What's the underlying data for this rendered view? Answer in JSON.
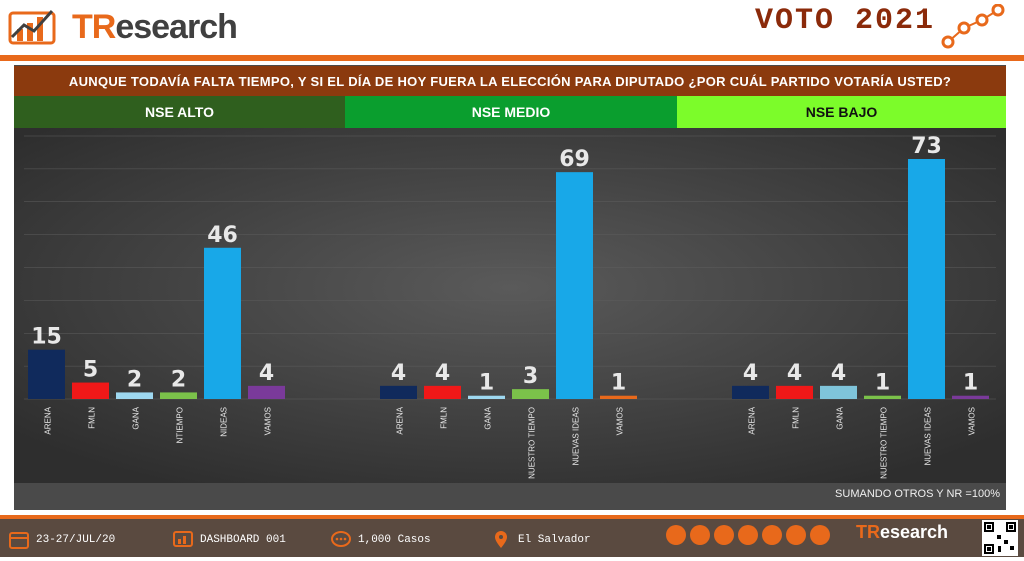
{
  "header": {
    "brand": "TResearch",
    "brand_prefix": "TR",
    "brand_rest": "esearch",
    "campaign": "VOTO 2021"
  },
  "question": "AUNQUE TODAVÍA FALTA TIEMPO, Y SI EL DÍA DE HOY FUERA LA ELECCIÓN PARA DIPUTADO ¿POR CUÁL PARTIDO VOTARÍA USTED?",
  "segments": [
    "NSE ALTO",
    "NSE MEDIO",
    "NSE BAJO"
  ],
  "note": "SUMANDO OTROS Y NR =100%",
  "footer": {
    "dates": "23-27/JUL/20",
    "dashboard": "DASHBOARD 001",
    "cases": "1,000 Casos",
    "location": "El Salvador",
    "brand": "TResearch"
  },
  "colors": {
    "orange": "#E8691B",
    "question_bg": "#8B3A0E",
    "alto": "#2F5F1E",
    "medio": "#0A9E2E",
    "bajo": "#7CFC2A"
  },
  "chart_data": [
    {
      "type": "bar",
      "title": "NSE ALTO",
      "categories": [
        "ARENA",
        "FMLN",
        "GANA",
        "NTIEMPO",
        "NIDEAS",
        "VAMOS"
      ],
      "values": [
        15,
        5,
        2,
        2,
        46,
        4
      ],
      "colors": [
        "#102A5C",
        "#F01818",
        "#9ED8F0",
        "#7BC24A",
        "#18A8E8",
        "#7A3A9A"
      ],
      "ylim": [
        0,
        80
      ]
    },
    {
      "type": "bar",
      "title": "NSE MEDIO",
      "categories": [
        "ARENA",
        "FMLN",
        "GANA",
        "NUESTRO TIEMPO",
        "NUEVAS IDEAS",
        "VAMOS"
      ],
      "values": [
        4,
        4,
        1,
        3,
        69,
        1
      ],
      "colors": [
        "#102A5C",
        "#F01818",
        "#9ED8F0",
        "#7BC24A",
        "#18A8E8",
        "#E8691B"
      ],
      "ylim": [
        0,
        80
      ]
    },
    {
      "type": "bar",
      "title": "NSE BAJO",
      "categories": [
        "ARENA",
        "FMLN",
        "GANA",
        "NUESTRO TIEMPO",
        "NUEVAS IDEAS",
        "VAMOS"
      ],
      "values": [
        4,
        4,
        4,
        1,
        73,
        1
      ],
      "colors": [
        "#102A5C",
        "#F01818",
        "#7FC4DA",
        "#7BC24A",
        "#18A8E8",
        "#7A3A9A"
      ],
      "ylim": [
        0,
        80
      ]
    }
  ]
}
